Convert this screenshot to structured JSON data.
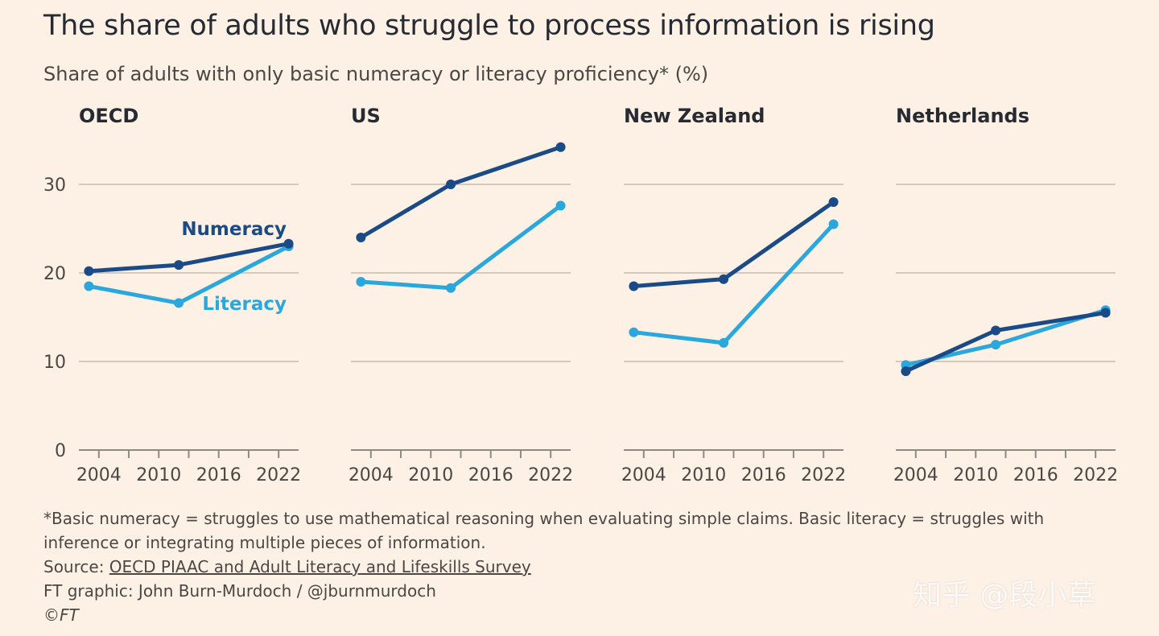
{
  "title": "The share of adults who struggle to process information is rising",
  "subtitle": "Share of adults with only basic numeracy or literacy proficiency* (%)",
  "footnote_line1": "*Basic numeracy = struggles to use mathematical reasoning when evaluating simple claims. Basic literacy = struggles with",
  "footnote_line2": "inference or integrating multiple pieces of information.",
  "source_prefix": "Source: ",
  "source_link": "OECD PIAAC and Adult Literacy and Lifeskills Survey",
  "credit": "FT graphic: John Burn-Murdoch / @jburnmurdoch",
  "copyright": "©FT",
  "watermark": "知乎 @段小草",
  "colors": {
    "numeracy": "#1a4b87",
    "literacy": "#2aa7dc",
    "grid": "#d4c9bf",
    "axis": "#8f8a85"
  },
  "chart_data": [
    {
      "type": "line",
      "title": "OECD",
      "x": [
        2003,
        2012,
        2023
      ],
      "xticks": [
        2004,
        2010,
        2016,
        2022
      ],
      "ylim": [
        0,
        35
      ],
      "yticks": [
        0,
        10,
        20,
        30
      ],
      "series": [
        {
          "name": "Numeracy",
          "values": [
            20.2,
            20.9,
            23.3
          ]
        },
        {
          "name": "Literacy",
          "values": [
            18.5,
            16.6,
            23.0
          ]
        }
      ]
    },
    {
      "type": "line",
      "title": "US",
      "x": [
        2003,
        2012,
        2023
      ],
      "xticks": [
        2004,
        2010,
        2016,
        2022
      ],
      "ylim": [
        0,
        35
      ],
      "yticks": [
        0,
        10,
        20,
        30
      ],
      "series": [
        {
          "name": "Numeracy",
          "values": [
            24.0,
            30.0,
            34.2
          ]
        },
        {
          "name": "Literacy",
          "values": [
            19.0,
            18.3,
            27.6
          ]
        }
      ]
    },
    {
      "type": "line",
      "title": "New Zealand",
      "x": [
        2003,
        2012,
        2023
      ],
      "xticks": [
        2004,
        2010,
        2016,
        2022
      ],
      "ylim": [
        0,
        35
      ],
      "yticks": [
        0,
        10,
        20,
        30
      ],
      "series": [
        {
          "name": "Numeracy",
          "values": [
            18.5,
            19.3,
            28.0
          ]
        },
        {
          "name": "Literacy",
          "values": [
            13.3,
            12.1,
            25.5
          ]
        }
      ]
    },
    {
      "type": "line",
      "title": "Netherlands",
      "x": [
        2003,
        2012,
        2023
      ],
      "xticks": [
        2004,
        2010,
        2016,
        2022
      ],
      "ylim": [
        0,
        35
      ],
      "yticks": [
        0,
        10,
        20,
        30
      ],
      "series": [
        {
          "name": "Numeracy",
          "values": [
            8.9,
            13.5,
            15.5
          ]
        },
        {
          "name": "Literacy",
          "values": [
            9.6,
            11.9,
            15.8
          ]
        }
      ]
    }
  ]
}
